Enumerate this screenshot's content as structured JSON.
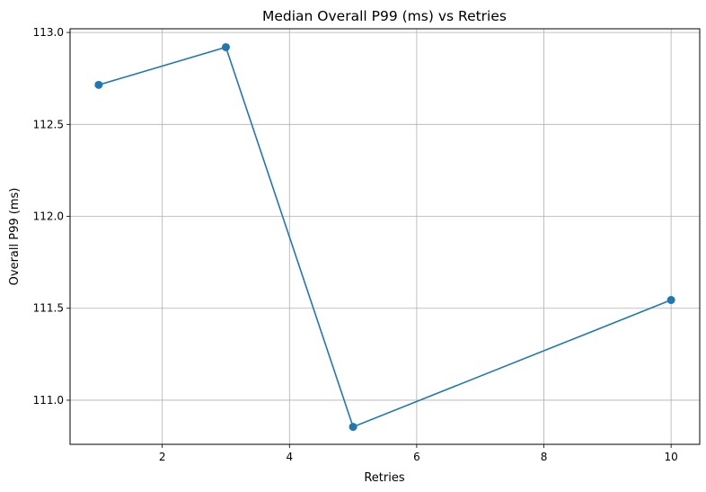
{
  "chart_data": {
    "type": "line",
    "title": "Median Overall P99 (ms) vs Retries",
    "xlabel": "Retries",
    "ylabel": "Overall P99 (ms)",
    "x": [
      1,
      3,
      5,
      10
    ],
    "series": [
      {
        "values": [
          112.715,
          112.92,
          110.855,
          111.545
        ],
        "color": "#1f77b4",
        "marker": "circle"
      }
    ],
    "xlim": [
      0.55,
      10.45
    ],
    "ylim": [
      110.76,
      113.02
    ],
    "xticks": [
      2,
      4,
      6,
      8,
      10
    ],
    "xtick_labels": [
      "2",
      "4",
      "6",
      "8",
      "10"
    ],
    "yticks": [
      111.0,
      111.5,
      112.0,
      112.5,
      113.0
    ],
    "ytick_labels": [
      "111.0",
      "111.5",
      "112.0",
      "112.5",
      "113.0"
    ],
    "grid": true,
    "legend": "none"
  }
}
